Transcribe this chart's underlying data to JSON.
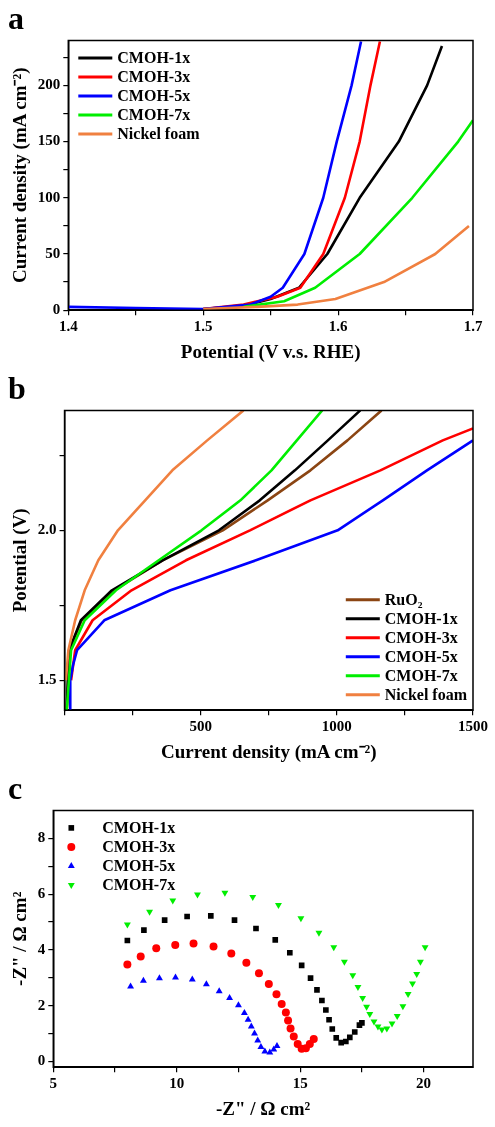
{
  "chart_data": [
    {
      "type": "line",
      "title": "a",
      "xlabel": "Potential (V v.s. RHE)",
      "ylabel": "Current density (mA cm⁻²)",
      "xlim": [
        1.4,
        1.7
      ],
      "xticks": [
        1.4,
        {
          "value": 1.45,
          "label": null
        },
        1.5,
        {
          "value": 1.55,
          "label": null
        },
        1.6,
        {
          "value": 1.65,
          "label": null
        },
        1.7
      ],
      "ylim": [
        0,
        240
      ],
      "yticks": [
        0,
        {
          "value": 25,
          "label": null
        },
        50,
        {
          "value": 75,
          "label": null
        },
        100,
        {
          "value": 125,
          "label": null
        },
        150,
        {
          "value": 175,
          "label": null
        },
        200,
        {
          "value": 225,
          "label": null
        }
      ],
      "grid": false,
      "legend": "top left",
      "marker": "none",
      "line_style": "solid",
      "series": [
        {
          "name": "CMOH-1x",
          "color": "#000000",
          "x": [
            1.5,
            1.53,
            1.55,
            1.571,
            1.592,
            1.616,
            1.645,
            1.666,
            1.677
          ],
          "values": [
            1,
            4,
            10,
            20,
            50,
            100,
            150,
            200,
            235
          ]
        },
        {
          "name": "CMOH-3x",
          "color": "#ff0000",
          "x": [
            1.5,
            1.53,
            1.555,
            1.572,
            1.589,
            1.605,
            1.616,
            1.624,
            1.631
          ],
          "values": [
            1,
            5,
            12,
            20,
            50,
            100,
            150,
            200,
            239
          ]
        },
        {
          "name": "CMOH-5x",
          "color": "#0000ff",
          "x": [
            1.4,
            1.45,
            1.5,
            1.535,
            1.55,
            1.559,
            1.575,
            1.589,
            1.599,
            1.61,
            1.617
          ],
          "values": [
            3,
            2,
            1,
            5,
            12,
            20,
            50,
            100,
            150,
            200,
            239
          ]
        },
        {
          "name": "CMOH-7x",
          "color": "#00ee00",
          "x": [
            1.53,
            1.56,
            1.583,
            1.616,
            1.655,
            1.689,
            1.7
          ],
          "values": [
            3,
            8,
            20,
            50,
            100,
            150,
            169
          ]
        },
        {
          "name": "Nickel foam",
          "color": "#f08040",
          "x": [
            1.5,
            1.54,
            1.57,
            1.598,
            1.634,
            1.672,
            1.697
          ],
          "values": [
            1,
            3,
            5,
            10,
            25,
            50,
            75
          ]
        }
      ]
    },
    {
      "type": "line",
      "title": "b",
      "xlabel": "Current density (mA cm⁻²)",
      "ylabel": "Potential (V)",
      "xlim": [
        0,
        1500
      ],
      "xticks": [
        {
          "value": 0,
          "label": null
        },
        {
          "value": 250,
          "label": null
        },
        500,
        {
          "value": 750,
          "label": null
        },
        1000,
        {
          "value": 1250,
          "label": null
        },
        1500
      ],
      "ylim": [
        1.4,
        2.4
      ],
      "yticks": [
        1.5,
        {
          "value": 1.75,
          "label": null
        },
        {
          "value": 2,
          "label": "2.0"
        },
        {
          "value": 2.25,
          "label": null
        }
      ],
      "grid": false,
      "legend": "bottom right",
      "marker": "none",
      "line_style": "solid",
      "series": [
        {
          "name": "RuO₂",
          "color": "#8b4513",
          "x": [
            8,
            17,
            63,
            181,
            360,
            581,
            746,
            903,
            1039,
            1164
          ],
          "values": [
            1.4,
            1.6,
            1.7,
            1.8,
            1.9,
            2.0,
            2.1,
            2.2,
            2.3,
            2.4
          ]
        },
        {
          "name": "CMOH-1x",
          "color": "#000000",
          "x": [
            8,
            17,
            60,
            174,
            360,
            567,
            717,
            846,
            967,
            1086
          ],
          "values": [
            1.4,
            1.6,
            1.7,
            1.8,
            1.9,
            2.0,
            2.1,
            2.2,
            2.3,
            2.4
          ]
        },
        {
          "name": "CMOH-3x",
          "color": "#ff0000",
          "x": [
            24,
            39,
            103,
            246,
            446,
            681,
            903,
            1160,
            1389,
            1500
          ],
          "values": [
            1.5,
            1.6,
            1.7,
            1.8,
            1.9,
            2.0,
            2.1,
            2.2,
            2.3,
            2.34
          ]
        },
        {
          "name": "CMOH-5x",
          "color": "#0000ff",
          "x": [
            21,
            21,
            31,
            46,
            146,
            389,
            703,
            1003,
            1169,
            1331,
            1500
          ],
          "values": [
            1.4,
            1.5,
            1.55,
            1.6,
            1.7,
            1.8,
            1.9,
            2.0,
            2.1,
            2.2,
            2.3
          ]
        },
        {
          "name": "CMOH-7x",
          "color": "#00ee00",
          "x": [
            8,
            24,
            74,
            189,
            346,
            503,
            646,
            760,
            853,
            946
          ],
          "values": [
            1.4,
            1.6,
            1.7,
            1.8,
            1.9,
            2.0,
            2.1,
            2.2,
            2.3,
            2.4
          ]
        },
        {
          "name": "Nickel foam",
          "color": "#f08040",
          "x": [
            5,
            14,
            39,
            74,
            124,
            196,
            296,
            396,
            524,
            657
          ],
          "values": [
            1.5,
            1.6,
            1.7,
            1.8,
            1.9,
            2.0,
            2.1,
            2.2,
            2.3,
            2.4
          ]
        }
      ]
    },
    {
      "type": "scatter",
      "title": "c",
      "xlabel": "-Z\" / Ω cm²",
      "ylabel": "-Z\" / Ω cm²",
      "xlim": [
        5,
        22
      ],
      "xticks": [
        5,
        {
          "value": 7.5,
          "label": null
        },
        10,
        {
          "value": 12.5,
          "label": null
        },
        15,
        {
          "value": 17.5,
          "label": null
        },
        20
      ],
      "ylim": [
        -0.2,
        9
      ],
      "yticks": [
        0,
        {
          "value": 1,
          "label": null
        },
        2,
        {
          "value": 3,
          "label": null
        },
        4,
        {
          "value": 5,
          "label": null
        },
        6,
        {
          "value": 7,
          "label": null
        },
        8
      ],
      "grid": false,
      "legend": "top left",
      "series": [
        {
          "name": "CMOH-1x",
          "color": "#000000",
          "marker": "square",
          "x": [
            8.0,
            8.67,
            9.51,
            10.42,
            11.38,
            12.34,
            13.21,
            13.99,
            14.58,
            15.06,
            15.42,
            15.68,
            15.88,
            16.04,
            16.17,
            16.3,
            16.46,
            16.66,
            16.85,
            17.01,
            17.21,
            17.4,
            17.5
          ],
          "values": [
            4.34,
            4.71,
            5.07,
            5.2,
            5.22,
            5.07,
            4.77,
            4.36,
            3.9,
            3.45,
            2.99,
            2.57,
            2.19,
            1.85,
            1.5,
            1.17,
            0.85,
            0.68,
            0.72,
            0.87,
            1.06,
            1.31,
            1.39
          ]
        },
        {
          "name": "CMOH-3x",
          "color": "#ff0000",
          "marker": "circle",
          "x": [
            8.0,
            8.54,
            9.17,
            9.94,
            10.68,
            11.49,
            12.21,
            12.82,
            13.33,
            13.73,
            14.04,
            14.25,
            14.42,
            14.51,
            14.61,
            14.74,
            14.9,
            15.06,
            15.23,
            15.39,
            15.55
          ],
          "values": [
            3.48,
            3.77,
            4.06,
            4.18,
            4.23,
            4.12,
            3.87,
            3.54,
            3.17,
            2.78,
            2.41,
            2.06,
            1.76,
            1.47,
            1.19,
            0.9,
            0.63,
            0.46,
            0.48,
            0.63,
            0.81
          ]
        },
        {
          "name": "CMOH-5x",
          "color": "#0000ff",
          "marker": "triangle",
          "x": [
            8.13,
            8.65,
            9.3,
            9.95,
            10.63,
            11.2,
            11.72,
            12.14,
            12.5,
            12.74,
            12.89,
            13.02,
            13.15,
            13.28,
            13.41,
            13.57,
            13.77,
            13.93,
            14.06
          ],
          "values": [
            2.69,
            2.9,
            2.99,
            3.01,
            2.94,
            2.77,
            2.52,
            2.28,
            2.02,
            1.74,
            1.5,
            1.26,
            1.01,
            0.76,
            0.52,
            0.36,
            0.33,
            0.43,
            0.56
          ]
        },
        {
          "name": "CMOH-7x",
          "color": "#00ee00",
          "marker": "triangle_down",
          "x": [
            8.0,
            8.9,
            9.84,
            10.84,
            11.95,
            13.08,
            14.12,
            15.03,
            15.76,
            16.36,
            16.79,
            17.13,
            17.34,
            17.53,
            17.69,
            17.82,
            17.99,
            18.15,
            18.31,
            18.51,
            18.72,
            18.93,
            19.16,
            19.37,
            19.55,
            19.72,
            19.87,
            20.06
          ],
          "values": [
            4.91,
            5.37,
            5.77,
            5.99,
            6.05,
            5.9,
            5.61,
            5.14,
            4.62,
            4.1,
            3.58,
            3.09,
            2.67,
            2.28,
            1.97,
            1.71,
            1.44,
            1.26,
            1.15,
            1.19,
            1.37,
            1.63,
            1.98,
            2.42,
            2.8,
            3.14,
            3.58,
            4.1
          ]
        }
      ]
    }
  ]
}
